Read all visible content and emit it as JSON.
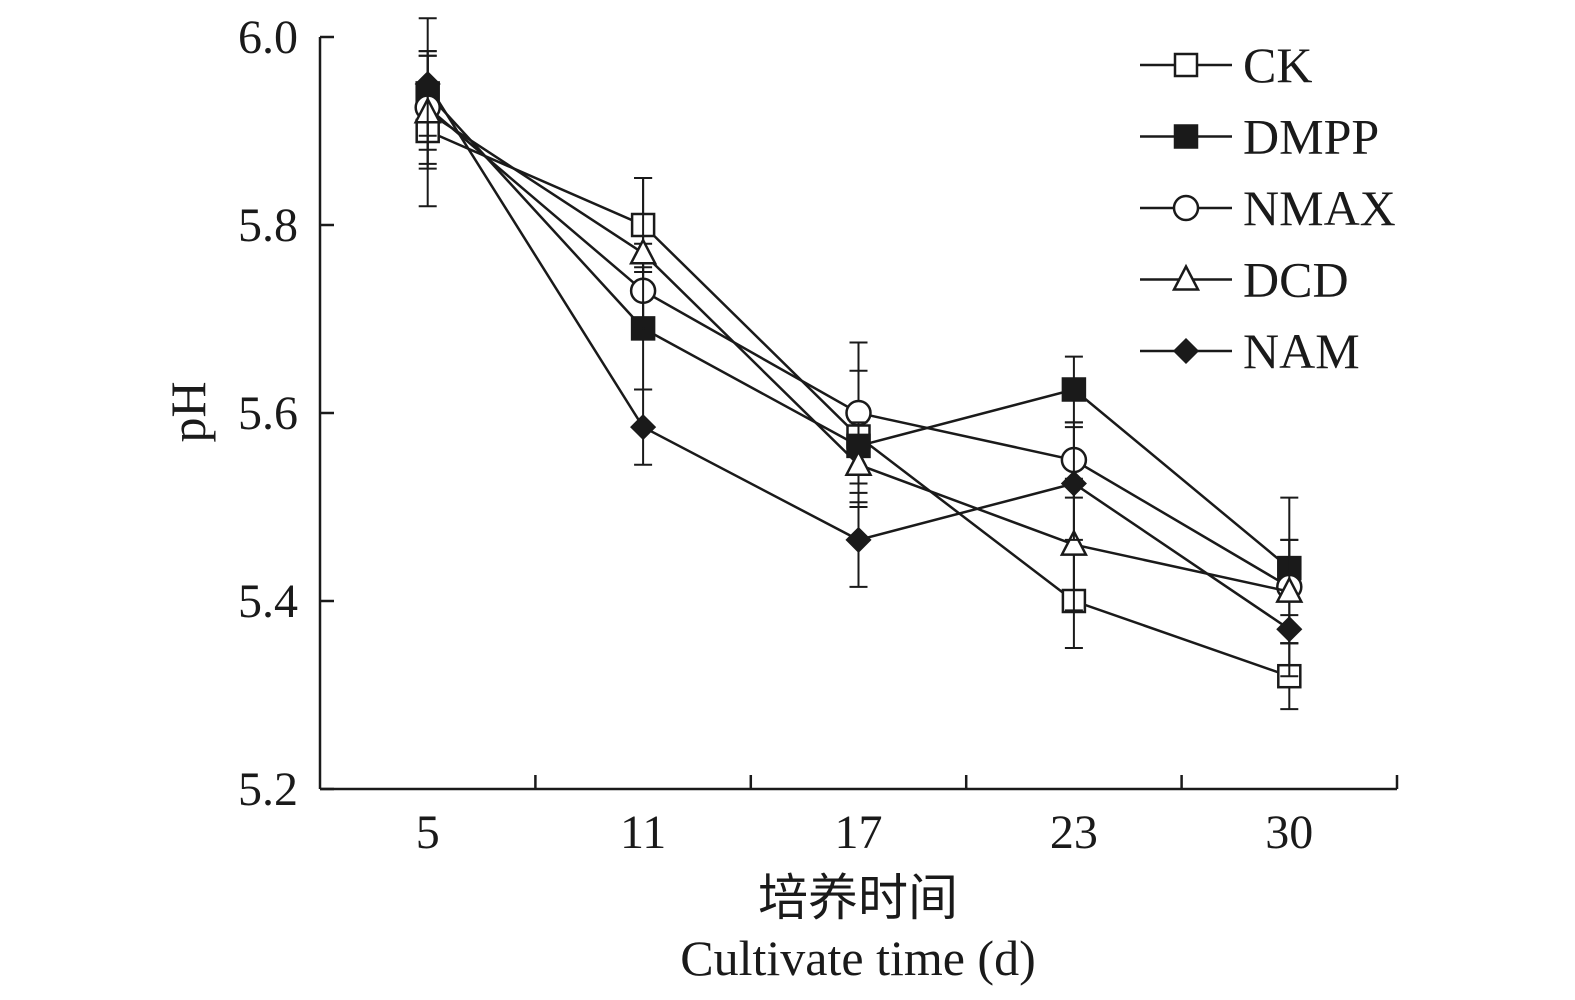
{
  "chart_data": {
    "type": "line",
    "ylabel": "pH",
    "xlabel_cn": "培养时间",
    "xlabel_en": "Cultivate time (d)",
    "categories": [
      "5",
      "11",
      "17",
      "23",
      "30"
    ],
    "ylim": [
      5.2,
      6.0
    ],
    "yticks": [
      "5.2",
      "5.4",
      "5.6",
      "5.8",
      "6.0"
    ],
    "grid": false,
    "legend_position": "top-right",
    "series": [
      {
        "name": "CK",
        "marker": "square-open",
        "values": [
          5.9,
          5.8,
          5.575,
          5.4,
          5.32
        ],
        "errors": [
          0.08,
          0.05,
          0.07,
          0.05,
          0.035
        ]
      },
      {
        "name": "DMPP",
        "marker": "square-filled",
        "values": [
          5.94,
          5.69,
          5.565,
          5.625,
          5.435
        ],
        "errors": [
          0.045,
          0.065,
          0.04,
          0.035,
          0.03
        ]
      },
      {
        "name": "NMAX",
        "marker": "circle-open",
        "values": [
          5.925,
          5.73,
          5.6,
          5.55,
          5.415
        ],
        "errors": [
          0.06,
          0.05,
          0.075,
          0.04,
          0.095
        ]
      },
      {
        "name": "DCD",
        "marker": "triangle-open",
        "values": [
          5.92,
          5.77,
          5.545,
          5.46,
          5.41
        ],
        "errors": [
          0.06,
          0.08,
          0.045,
          0.07,
          0.055
        ]
      },
      {
        "name": "NAM",
        "marker": "diamond-filled",
        "values": [
          5.95,
          5.585,
          5.465,
          5.525,
          5.37
        ],
        "errors": [
          0.07,
          0.04,
          0.05,
          0.06,
          0.015
        ]
      }
    ]
  }
}
